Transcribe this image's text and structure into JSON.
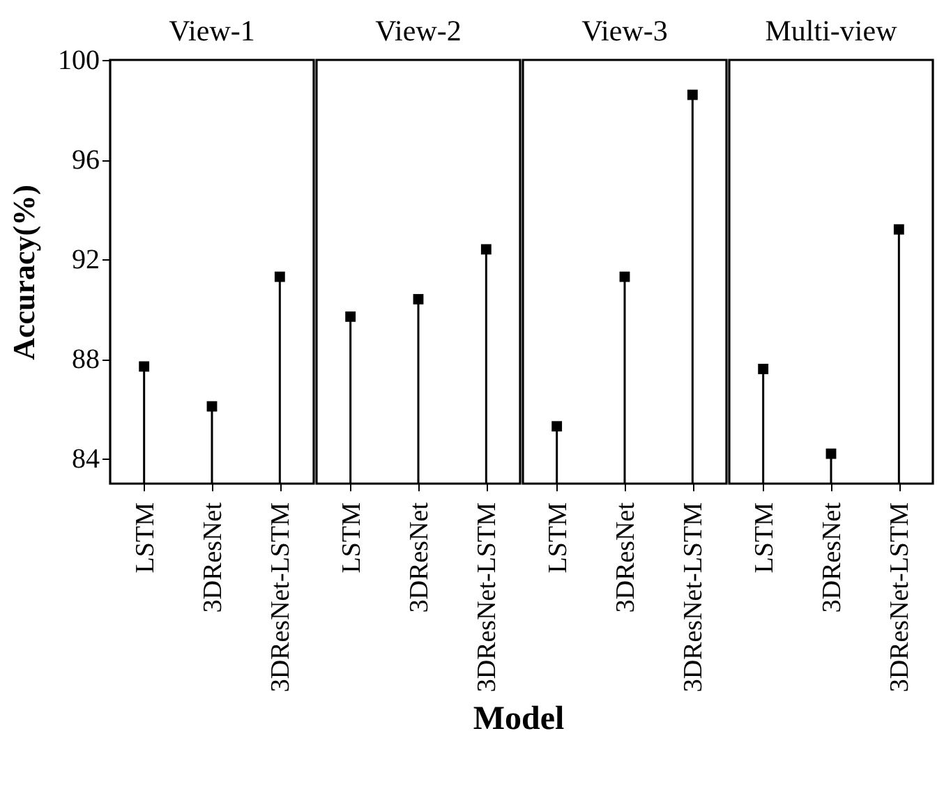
{
  "chart_data": [
    {
      "type": "lollipop",
      "title": "View-1",
      "ylabel": "Accuracy(%)",
      "xlabel": "Model",
      "categories": [
        "LSTM",
        "3DResNet",
        "3DResNet-LSTM"
      ],
      "values": [
        87.7,
        86.1,
        91.3
      ],
      "color": "#000000",
      "marker": "square",
      "ylim": [
        83,
        100
      ],
      "yticks": [
        84,
        88,
        92,
        96,
        100
      ]
    },
    {
      "type": "lollipop",
      "title": "View-2",
      "categories": [
        "LSTM",
        "3DResNet",
        "3DResNet-LSTM"
      ],
      "values": [
        89.7,
        90.4,
        92.4
      ],
      "color": "#000000",
      "marker": "square",
      "ylim": [
        83,
        100
      ],
      "yticks": [
        84,
        88,
        92,
        96,
        100
      ],
      "tick_labels": "x"
    },
    {
      "type": "lollipop",
      "title": "View-3",
      "categories": [
        "LSTM",
        "3DResNet",
        "3DResNet-LSTM"
      ],
      "values": [
        85.3,
        91.3,
        98.6
      ],
      "color": "#000000",
      "marker": "square",
      "ylim": [
        83,
        100
      ],
      "yticks": [
        84,
        88,
        92,
        96,
        100
      ],
      "tick_labels": "x"
    },
    {
      "type": "lollipop",
      "title": "Multi-view",
      "categories": [
        "LSTM",
        "3DResNet",
        "3DResNet-LSTM"
      ],
      "values": [
        87.6,
        84.2,
        93.2
      ],
      "color": "#000000",
      "marker": "square",
      "ylim": [
        83,
        100
      ],
      "yticks": [
        84,
        88,
        92,
        96,
        100
      ],
      "tick_labels": "x"
    }
  ]
}
